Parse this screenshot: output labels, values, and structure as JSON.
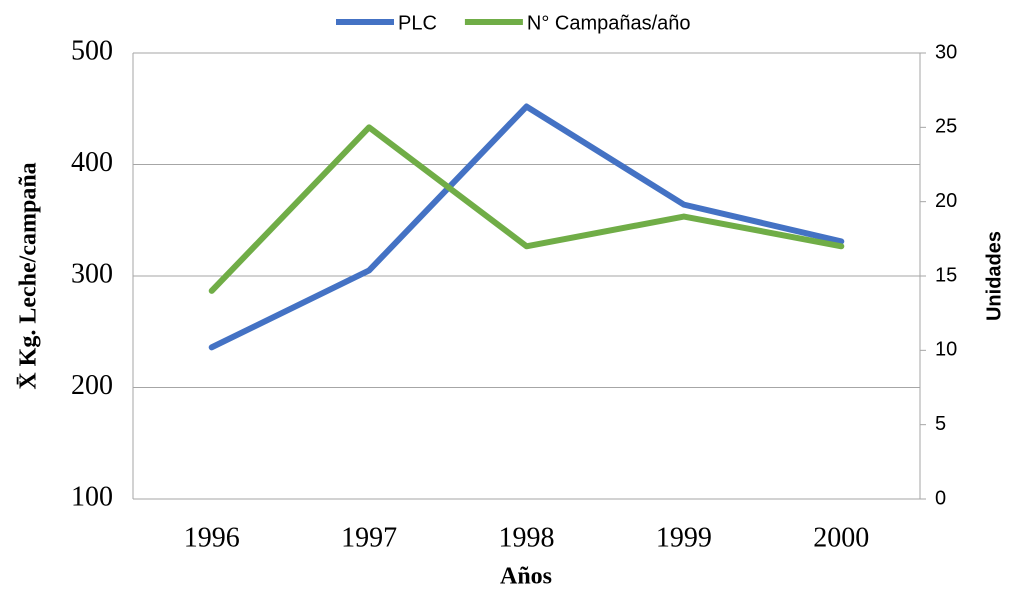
{
  "chart_data": {
    "type": "line",
    "x_label": "Años",
    "y_label": "X̄ Kg. Leche/campaña",
    "y2_label": "Unidades",
    "categories": [
      "1996",
      "1997",
      "1998",
      "1999",
      "2000"
    ],
    "series": [
      {
        "name": "PLC",
        "color": "#4472c4",
        "values": [
          236,
          305,
          452,
          364,
          331
        ]
      },
      {
        "name": "N° Campañas/año",
        "color": "#70ad47",
        "axis": "y2",
        "values": [
          14,
          25,
          17,
          19,
          17
        ]
      }
    ],
    "ylim": [
      100,
      500
    ],
    "yticks": [
      100,
      200,
      300,
      400,
      500
    ],
    "y2lim": [
      0,
      30
    ],
    "y2ticks": [
      0,
      5,
      10,
      15,
      20,
      25,
      30
    ],
    "grid": true,
    "legend": "top"
  }
}
